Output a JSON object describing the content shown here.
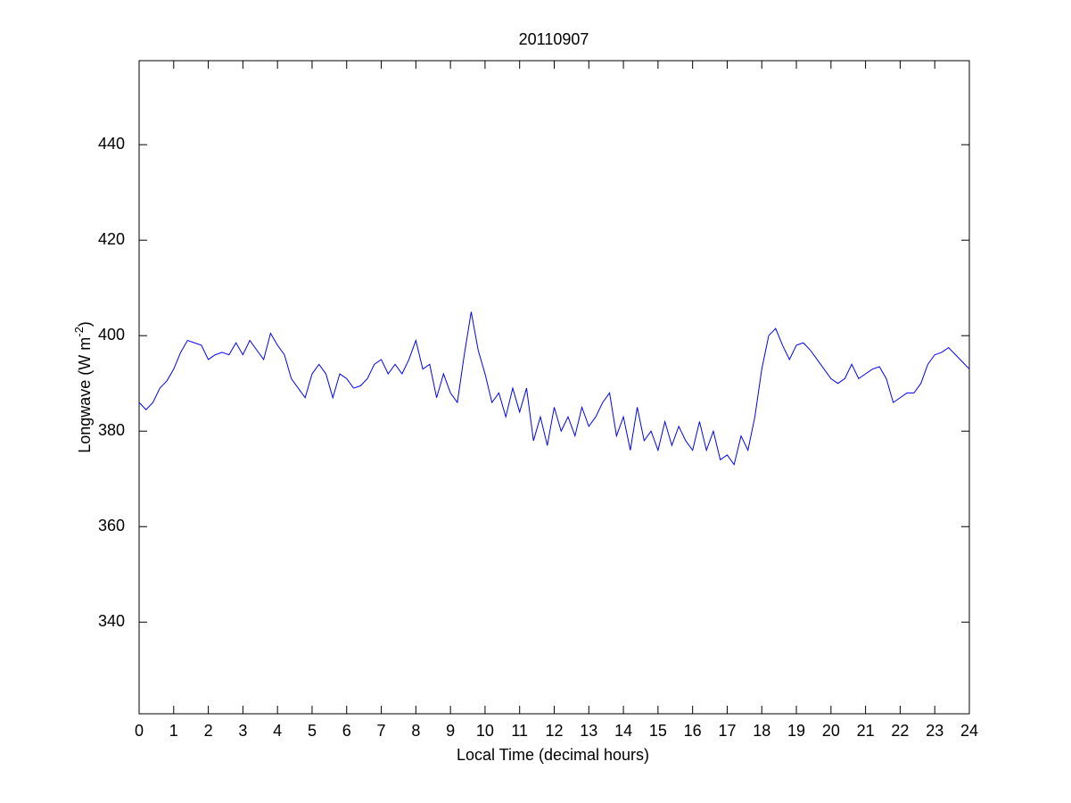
{
  "chart_data": {
    "type": "line",
    "title": "20110907",
    "x_label": "Local Time (decimal hours)",
    "y_label": [
      "Longwave (W m",
      "-2",
      ")"
    ],
    "xlim": [
      0,
      24
    ],
    "ylim": [
      320.8,
      457.6
    ],
    "xticks": [
      0,
      1,
      2,
      3,
      4,
      5,
      6,
      7,
      8,
      9,
      10,
      11,
      12,
      13,
      14,
      15,
      16,
      17,
      18,
      19,
      20,
      21,
      22,
      23,
      24
    ],
    "yticks": [
      340,
      360,
      380,
      400,
      420,
      440
    ],
    "grid": false,
    "series": [
      {
        "color": "#0000ff",
        "x": [
          0,
          0.2,
          0.4,
          0.6,
          0.8,
          1,
          1.2,
          1.4,
          1.6,
          1.8,
          2,
          2.2,
          2.4,
          2.6,
          2.8,
          3,
          3.2,
          3.4,
          3.6,
          3.8,
          4,
          4.2,
          4.4,
          4.6,
          4.8,
          5,
          5.2,
          5.4,
          5.6,
          5.8,
          6,
          6.2,
          6.4,
          6.6,
          6.8,
          7,
          7.2,
          7.4,
          7.6,
          7.8,
          8,
          8.2,
          8.4,
          8.6,
          8.8,
          9,
          9.2,
          9.4,
          9.6,
          9.8,
          10,
          10.2,
          10.4,
          10.6,
          10.8,
          11,
          11.2,
          11.4,
          11.6,
          11.8,
          12,
          12.2,
          12.4,
          12.6,
          12.8,
          13,
          13.2,
          13.4,
          13.6,
          13.8,
          14,
          14.2,
          14.4,
          14.6,
          14.8,
          15,
          15.2,
          15.4,
          15.6,
          15.8,
          16,
          16.2,
          16.4,
          16.6,
          16.8,
          17,
          17.2,
          17.4,
          17.6,
          17.8,
          18,
          18.2,
          18.4,
          18.6,
          18.8,
          19,
          19.2,
          19.4,
          19.6,
          19.8,
          20,
          20.2,
          20.4,
          20.6,
          20.8,
          21,
          21.2,
          21.4,
          21.6,
          21.8,
          22,
          22.2,
          22.4,
          22.6,
          22.8,
          23,
          23.2,
          23.4,
          23.6,
          23.8,
          24
        ],
        "values": [
          386,
          384.5,
          386,
          389,
          390.5,
          393,
          396.5,
          399,
          398.5,
          398,
          395,
          396,
          396.5,
          396,
          398.5,
          396,
          399,
          397,
          395,
          400.5,
          398,
          396,
          391,
          389,
          387,
          392,
          394,
          392,
          387,
          392,
          391,
          389,
          389.5,
          391,
          394,
          395,
          392,
          394,
          392,
          395,
          399,
          393,
          394,
          387,
          392,
          388,
          386,
          396,
          405,
          397,
          392,
          386,
          388,
          383,
          389,
          384,
          389,
          378,
          383,
          377,
          385,
          380,
          383,
          379,
          385,
          381,
          383,
          386,
          388,
          379,
          383,
          376,
          385,
          378,
          380,
          376,
          382,
          377,
          381,
          378,
          376,
          382,
          376,
          380,
          374,
          375,
          373,
          379,
          376,
          383,
          393,
          400,
          401.5,
          398,
          395,
          398,
          398.5,
          397,
          395,
          393,
          391,
          390,
          391,
          394,
          391,
          392,
          393,
          393.5,
          391,
          386,
          387,
          388,
          388,
          390,
          394,
          396,
          396.5,
          397.5,
          396,
          394.5,
          393
        ]
      }
    ]
  }
}
